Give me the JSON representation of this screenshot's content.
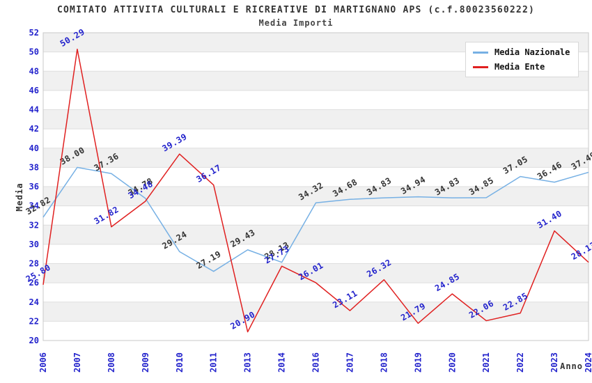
{
  "page": {
    "title": "COMITATO ATTIVITA CULTURALI E RICREATIVE DI MARTIGNANO APS (c.f.80023560222)",
    "subtitle": "Media Importi"
  },
  "axes": {
    "x_label": "Anno",
    "y_label": "Media",
    "y_ticks": [
      20,
      22,
      24,
      26,
      28,
      30,
      32,
      34,
      36,
      38,
      40,
      42,
      44,
      46,
      48,
      50,
      52
    ]
  },
  "colors": {
    "tick_label": "#2323CC",
    "band_gray": "#F0F0F0",
    "band_white": "#FFFFFF",
    "gridline": "#DEDEDE",
    "plot_border": "#C9C9C9",
    "title_text": "#333333"
  },
  "chart_data": {
    "type": "line",
    "title": "COMITATO ATTIVITA CULTURALI E RICREATIVE DI MARTIGNANO APS (c.f.80023560222)",
    "subtitle": "Media Importi",
    "xlabel": "Anno",
    "ylabel": "Media",
    "ylim": [
      20,
      52
    ],
    "ytick_step": 2,
    "grid": "horizontal-bands-alternating",
    "legend_position": "top-right",
    "markers": "none",
    "categories": [
      "2006",
      "2007",
      "2008",
      "2009",
      "2010",
      "2011",
      "2013",
      "2014",
      "2016",
      "2017",
      "2018",
      "2019",
      "2020",
      "2021",
      "2022",
      "2023",
      "2024"
    ],
    "series": [
      {
        "name": "Media Nazionale",
        "color": "#76B0E4",
        "label_color": "#333333",
        "values": [
          32.82,
          38.0,
          37.36,
          34.78,
          29.24,
          27.19,
          29.43,
          28.13,
          34.32,
          34.68,
          34.83,
          34.94,
          34.83,
          34.85,
          37.05,
          36.46,
          37.49
        ]
      },
      {
        "name": "Media Ente",
        "color": "#E02020",
        "label_color": "#2323CC",
        "values": [
          25.8,
          50.29,
          31.82,
          34.48,
          39.39,
          36.17,
          20.9,
          27.73,
          26.01,
          23.11,
          26.32,
          21.79,
          24.85,
          22.06,
          22.85,
          31.4,
          28.13
        ]
      }
    ]
  }
}
